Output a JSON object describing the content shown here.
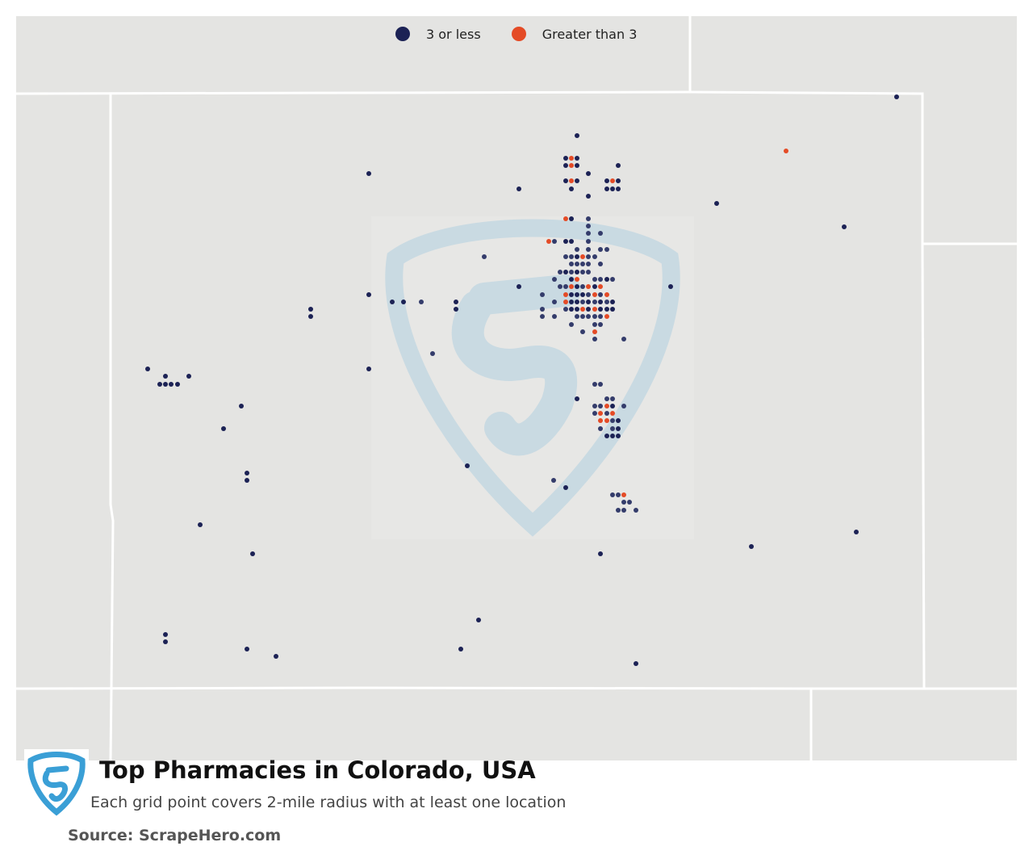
{
  "title": "Top Pharmacies in Colorado, USA",
  "subtitle": "Each grid point covers 2-mile radius with at least one location",
  "source": "Source: ScrapeHero.com",
  "legend": [
    {
      "label": "3 or less",
      "color": "#1c2255"
    },
    {
      "label": "Greater than 3",
      "color": "#e44b26"
    }
  ],
  "colors": {
    "background": "#e4e4e2",
    "borders": "#ffffff",
    "watermark": "#c9dae2",
    "logo": "#3a9fd6"
  },
  "icons": {
    "logo": "scrapehero-shield-icon",
    "watermark": "scrapehero-shield-watermark"
  }
}
